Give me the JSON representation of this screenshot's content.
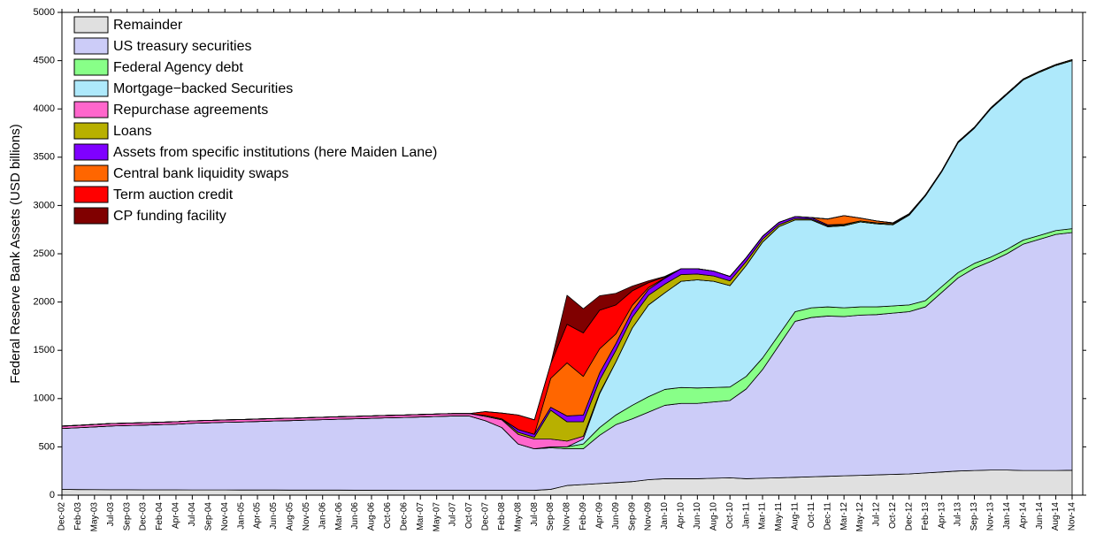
{
  "chart_data": {
    "type": "stacked-area",
    "y_label": "Federal Reserve Bank Assets (USD billions)",
    "ylim": [
      0,
      5000
    ],
    "yticks": [
      0,
      500,
      1000,
      1500,
      2000,
      2500,
      3000,
      3500,
      4000,
      4500,
      5000
    ],
    "legend": "upper-left",
    "categories": [
      "Dec-02",
      "Feb-03",
      "May-03",
      "Jul-03",
      "Sep-03",
      "Dec-03",
      "Feb-04",
      "Apr-04",
      "Jul-04",
      "Sep-04",
      "Nov-04",
      "Jan-05",
      "Apr-05",
      "Jun-05",
      "Aug-05",
      "Nov-05",
      "Jan-06",
      "Mar-06",
      "Jun-06",
      "Aug-06",
      "Oct-06",
      "Dec-06",
      "Mar-07",
      "May-07",
      "Jul-07",
      "Oct-07",
      "Dec-07",
      "Feb-08",
      "May-08",
      "Jul-08",
      "Sep-08",
      "Nov-08",
      "Feb-09",
      "Apr-09",
      "Jun-09",
      "Sep-09",
      "Nov-09",
      "Jan-10",
      "Apr-10",
      "Jun-10",
      "Aug-10",
      "Oct-10",
      "Jan-11",
      "Mar-11",
      "May-11",
      "Aug-11",
      "Oct-11",
      "Dec-11",
      "Mar-12",
      "May-12",
      "Jul-12",
      "Oct-12",
      "Dec-12",
      "Feb-13",
      "Apr-13",
      "Jul-13",
      "Sep-13",
      "Nov-13",
      "Jan-14",
      "Apr-14",
      "Jun-14",
      "Aug-14",
      "Nov-14"
    ],
    "series": [
      {
        "name": "Remainder",
        "color": "#e0e0e0",
        "values": [
          60,
          58,
          57,
          56,
          56,
          55,
          55,
          55,
          54,
          54,
          54,
          53,
          53,
          53,
          52,
          52,
          52,
          52,
          51,
          51,
          51,
          50,
          50,
          50,
          50,
          50,
          50,
          50,
          50,
          50,
          60,
          100,
          110,
          120,
          130,
          140,
          160,
          170,
          170,
          170,
          175,
          180,
          170,
          175,
          180,
          185,
          190,
          195,
          200,
          205,
          210,
          215,
          220,
          230,
          240,
          250,
          255,
          260,
          260,
          255,
          255,
          255,
          258
        ]
      },
      {
        "name": "US treasury securities",
        "color": "#ccccf8",
        "values": [
          630,
          640,
          650,
          660,
          665,
          670,
          675,
          680,
          690,
          695,
          700,
          705,
          710,
          715,
          720,
          725,
          730,
          735,
          740,
          745,
          750,
          755,
          760,
          765,
          770,
          770,
          720,
          650,
          480,
          430,
          430,
          380,
          370,
          500,
          600,
          650,
          700,
          760,
          780,
          780,
          790,
          800,
          930,
          1125,
          1370,
          1615,
          1650,
          1660,
          1650,
          1660,
          1660,
          1670,
          1680,
          1720,
          1860,
          2000,
          2095,
          2160,
          2240,
          2345,
          2395,
          2445,
          2462
        ]
      },
      {
        "name": "Federal Agency debt",
        "color": "#88ff88",
        "values": [
          0,
          0,
          0,
          0,
          0,
          0,
          0,
          0,
          0,
          0,
          0,
          0,
          0,
          0,
          0,
          0,
          0,
          0,
          0,
          0,
          0,
          0,
          0,
          0,
          0,
          0,
          0,
          0,
          0,
          0,
          10,
          20,
          50,
          80,
          100,
          140,
          160,
          165,
          165,
          160,
          150,
          140,
          130,
          120,
          110,
          100,
          100,
          95,
          90,
          85,
          80,
          75,
          70,
          65,
          60,
          55,
          50,
          45,
          45,
          42,
          40,
          40,
          40
        ]
      },
      {
        "name": "Mortgage−backed Securities",
        "color": "#aee9fb",
        "values": [
          0,
          0,
          0,
          0,
          0,
          0,
          0,
          0,
          0,
          0,
          0,
          0,
          0,
          0,
          0,
          0,
          0,
          0,
          0,
          0,
          0,
          0,
          0,
          0,
          0,
          0,
          0,
          0,
          0,
          0,
          0,
          0,
          50,
          350,
          550,
          800,
          950,
          1000,
          1100,
          1120,
          1100,
          1050,
          1150,
          1200,
          1120,
          950,
          910,
          830,
          850,
          880,
          860,
          840,
          930,
          1085,
          1190,
          1345,
          1400,
          1535,
          1605,
          1658,
          1690,
          1710,
          1740
        ]
      },
      {
        "name": "Repurchase agreements",
        "color": "#ff66cc",
        "values": [
          25,
          25,
          25,
          25,
          25,
          25,
          25,
          25,
          25,
          25,
          25,
          25,
          25,
          25,
          25,
          25,
          25,
          25,
          25,
          25,
          25,
          25,
          25,
          25,
          25,
          25,
          45,
          80,
          100,
          100,
          80,
          60,
          30,
          10,
          0,
          0,
          0,
          0,
          0,
          0,
          0,
          0,
          0,
          0,
          0,
          0,
          0,
          0,
          0,
          0,
          0,
          0,
          0,
          0,
          0,
          0,
          0,
          0,
          0,
          0,
          0,
          0,
          0
        ]
      },
      {
        "name": "Loans",
        "color": "#b8b000",
        "values": [
          0,
          0,
          0,
          0,
          0,
          0,
          0,
          0,
          0,
          0,
          0,
          0,
          0,
          0,
          0,
          0,
          0,
          0,
          0,
          0,
          0,
          0,
          0,
          0,
          0,
          0,
          10,
          10,
          20,
          20,
          300,
          200,
          150,
          130,
          120,
          110,
          100,
          90,
          70,
          60,
          55,
          50,
          40,
          30,
          20,
          15,
          10,
          10,
          10,
          10,
          10,
          10,
          10,
          10,
          10,
          10,
          10,
          10,
          10,
          10,
          10,
          10,
          10
        ]
      },
      {
        "name": "Assets from specific institutions (here Maiden Lane)",
        "color": "#7f00ff",
        "values": [
          0,
          0,
          0,
          0,
          0,
          0,
          0,
          0,
          0,
          0,
          0,
          0,
          0,
          0,
          0,
          0,
          0,
          0,
          0,
          0,
          0,
          0,
          0,
          0,
          0,
          0,
          0,
          0,
          30,
          30,
          30,
          60,
          70,
          75,
          70,
          65,
          60,
          60,
          60,
          55,
          50,
          45,
          40,
          30,
          25,
          20,
          15,
          10,
          5,
          0,
          0,
          0,
          0,
          0,
          0,
          0,
          0,
          0,
          0,
          0,
          0,
          0,
          0
        ]
      },
      {
        "name": "Central bank liquidity swaps",
        "color": "#ff6600",
        "values": [
          0,
          0,
          0,
          0,
          0,
          0,
          0,
          0,
          0,
          0,
          0,
          0,
          0,
          0,
          0,
          0,
          0,
          0,
          0,
          0,
          0,
          0,
          0,
          0,
          0,
          0,
          0,
          0,
          0,
          0,
          300,
          550,
          400,
          250,
          100,
          60,
          20,
          5,
          0,
          0,
          0,
          0,
          0,
          0,
          0,
          0,
          0,
          60,
          90,
          30,
          20,
          10,
          5,
          0,
          0,
          0,
          0,
          0,
          0,
          0,
          0,
          0,
          0
        ]
      },
      {
        "name": "Term auction credit",
        "color": "#ff0000",
        "values": [
          0,
          0,
          0,
          0,
          0,
          0,
          0,
          0,
          0,
          0,
          0,
          0,
          0,
          0,
          0,
          0,
          0,
          0,
          0,
          0,
          0,
          0,
          0,
          0,
          0,
          0,
          40,
          60,
          150,
          150,
          150,
          400,
          450,
          400,
          300,
          150,
          50,
          10,
          0,
          0,
          0,
          0,
          0,
          0,
          0,
          0,
          0,
          0,
          0,
          0,
          0,
          0,
          0,
          0,
          0,
          0,
          0,
          0,
          0,
          0,
          0,
          0,
          0
        ]
      },
      {
        "name": "CP funding facility",
        "color": "#800000",
        "values": [
          0,
          0,
          0,
          0,
          0,
          0,
          0,
          0,
          0,
          0,
          0,
          0,
          0,
          0,
          0,
          0,
          0,
          0,
          0,
          0,
          0,
          0,
          0,
          0,
          0,
          0,
          0,
          0,
          0,
          0,
          0,
          300,
          250,
          150,
          120,
          50,
          20,
          5,
          0,
          0,
          0,
          0,
          0,
          0,
          0,
          0,
          0,
          0,
          0,
          0,
          0,
          0,
          0,
          0,
          0,
          0,
          0,
          0,
          0,
          0,
          0,
          0,
          0
        ]
      }
    ]
  }
}
